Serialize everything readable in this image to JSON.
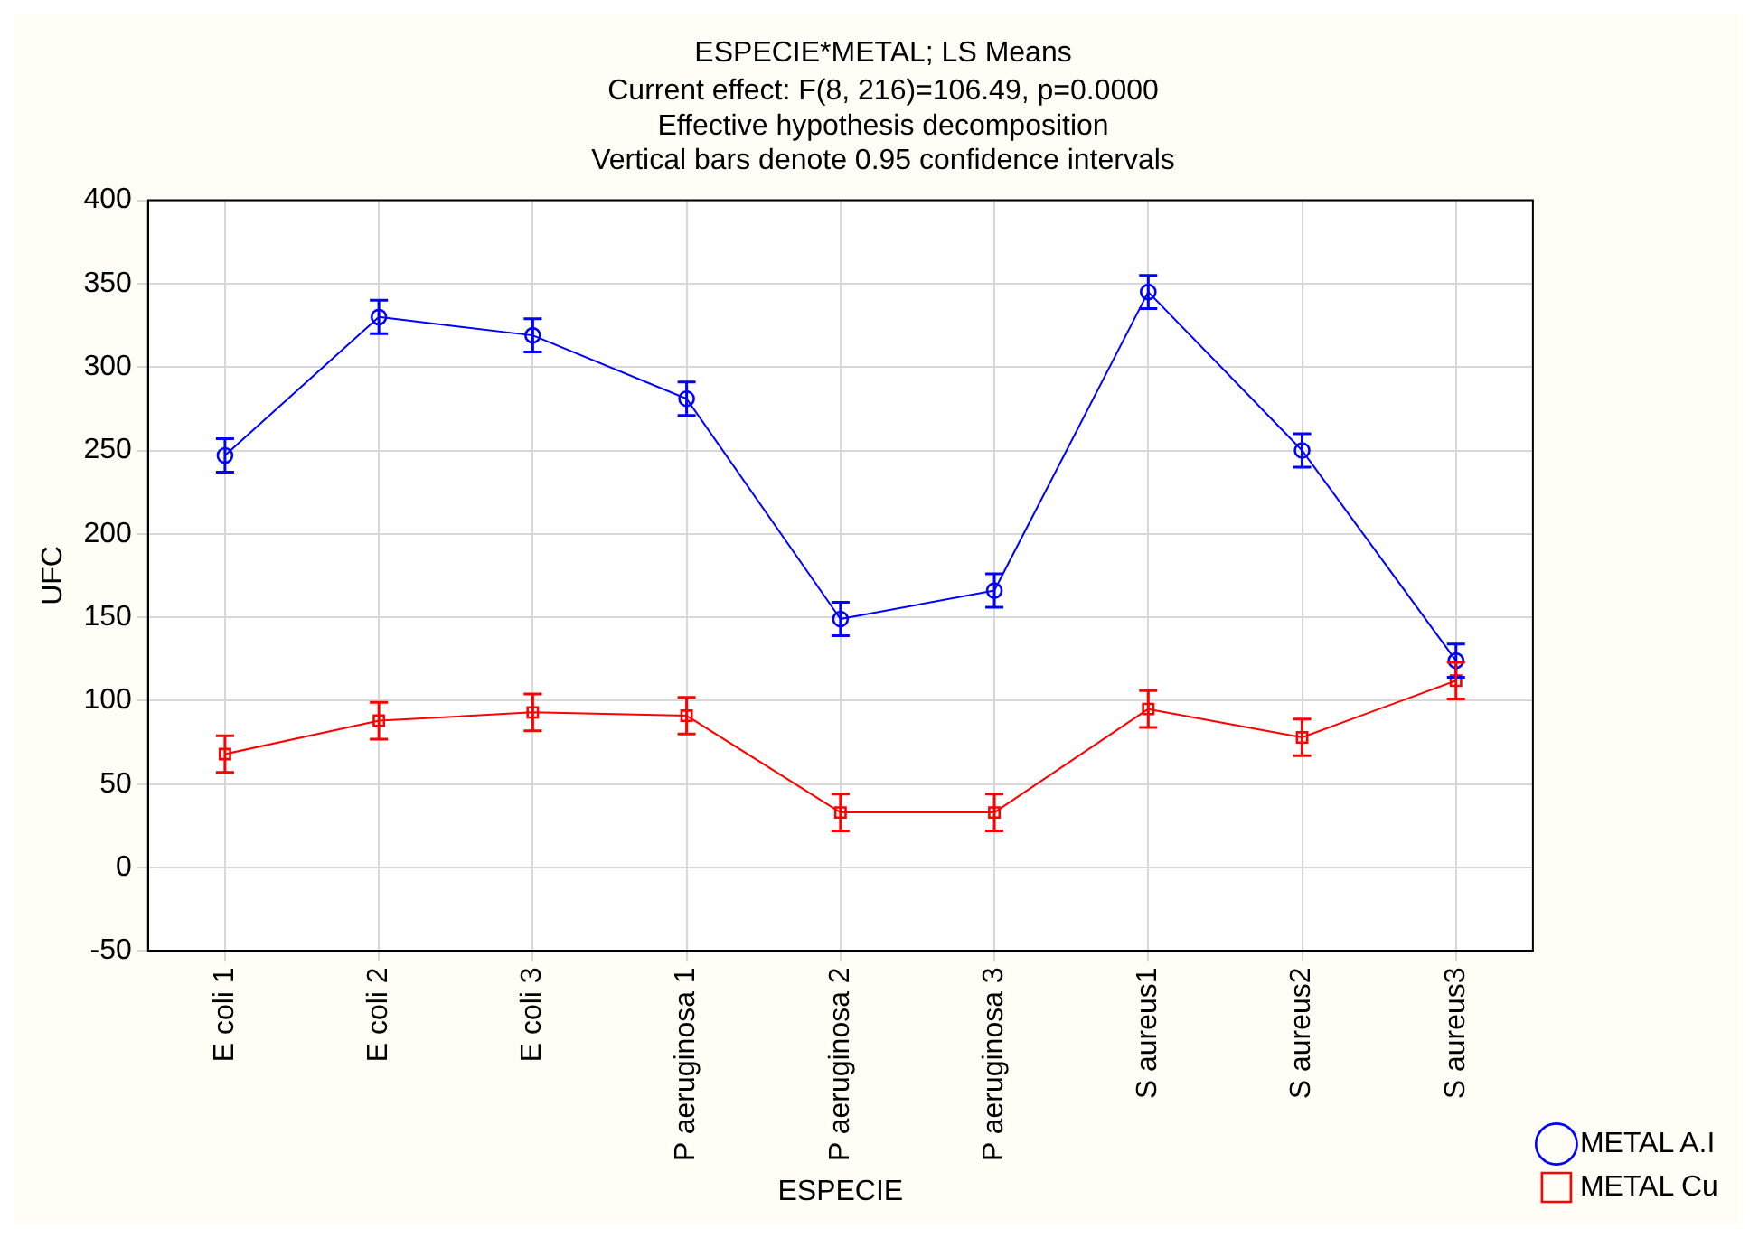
{
  "chart_data": {
    "type": "line",
    "title": "ESPECIE*METAL; LS Means",
    "subtitle": "Current effect: F(8, 216)=106.49, p=0.0000",
    "annotations": [
      "Effective hypothesis decomposition",
      "Vertical bars denote 0.95 confidence intervals"
    ],
    "xlabel": "ESPECIE",
    "ylabel": "UFC",
    "categories": [
      "E coli 1",
      "E coli 2",
      "E coli 3",
      "P aeruginosa 1",
      "P aeruginosa 2",
      "P aeruginosa 3",
      "S aureus1",
      "S aureus2",
      "S aureus3"
    ],
    "series": [
      {
        "name": "METAL A.I",
        "color": "#0000ff",
        "marker": "circle",
        "values": [
          247,
          330,
          319,
          281,
          149,
          166,
          345,
          250,
          124
        ],
        "errors": [
          10,
          10,
          10,
          10,
          10,
          10,
          10,
          10,
          10
        ]
      },
      {
        "name": "METAL Cu",
        "color": "#ff0000",
        "marker": "square",
        "values": [
          68,
          88,
          93,
          91,
          33,
          33,
          95,
          78,
          112
        ],
        "errors": [
          11,
          11,
          11,
          11,
          11,
          11,
          11,
          11,
          11
        ]
      }
    ],
    "ylim": [
      -50,
      400
    ],
    "yticks": [
      -50,
      0,
      50,
      100,
      150,
      200,
      250,
      300,
      350,
      400
    ],
    "grid": true,
    "legend": "bottom right",
    "line_style": "solid"
  }
}
